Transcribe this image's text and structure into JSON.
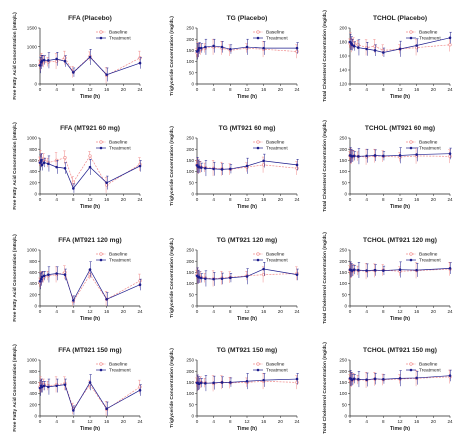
{
  "chart_data": [
    {
      "type": "line",
      "title": "FFA (Placebo)",
      "xlabel": "Time (h)",
      "ylabel": "Free Fatty Acid Concentration (mEq/L)",
      "xlim": [
        0,
        24
      ],
      "ylim": [
        0,
        1500
      ],
      "xticks": [
        0,
        4,
        8,
        12,
        16,
        20,
        24
      ],
      "yticks": [
        0,
        500,
        1000,
        1500
      ],
      "x": [
        0,
        0.25,
        0.5,
        1,
        2,
        4,
        6,
        8,
        12,
        16,
        24
      ],
      "series": [
        {
          "name": "Baseline",
          "values": [
            520,
            560,
            640,
            600,
            590,
            610,
            700,
            320,
            740,
            230,
            700
          ]
        },
        {
          "name": "Treatment",
          "values": [
            500,
            580,
            620,
            640,
            630,
            670,
            610,
            310,
            720,
            250,
            560
          ]
        }
      ]
    },
    {
      "type": "line",
      "title": "TG (Placebo)",
      "xlabel": "Time (h)",
      "ylabel": "Triglyceride Concentration (mg/dL)",
      "xlim": [
        0,
        24
      ],
      "ylim": [
        0,
        250
      ],
      "xticks": [
        0,
        4,
        8,
        12,
        16,
        20,
        24
      ],
      "yticks": [
        0,
        50,
        100,
        150,
        200,
        250
      ],
      "x": [
        0,
        0.25,
        0.5,
        1,
        2,
        4,
        6,
        8,
        12,
        16,
        24
      ],
      "series": [
        {
          "name": "Baseline",
          "values": [
            140,
            150,
            150,
            155,
            160,
            165,
            160,
            150,
            160,
            155,
            145
          ]
        },
        {
          "name": "Treatment",
          "values": [
            145,
            150,
            160,
            160,
            165,
            170,
            165,
            155,
            165,
            160,
            160
          ]
        }
      ]
    },
    {
      "type": "line",
      "title": "TCHOL (Placebo)",
      "xlabel": "Time (h)",
      "ylabel": "Total Cholesterol Concentration (mg/dL)",
      "xlim": [
        0,
        24
      ],
      "ylim": [
        120,
        200
      ],
      "xticks": [
        0,
        4,
        8,
        12,
        16,
        20,
        24
      ],
      "yticks": [
        120,
        140,
        160,
        180,
        200
      ],
      "x": [
        0,
        0.25,
        0.5,
        1,
        2,
        4,
        6,
        8,
        12,
        16,
        24
      ],
      "series": [
        {
          "name": "Baseline",
          "values": [
            178,
            182,
            175,
            178,
            176,
            172,
            174,
            168,
            170,
            172,
            176
          ]
        },
        {
          "name": "Treatment",
          "values": [
            180,
            178,
            176,
            174,
            172,
            170,
            168,
            165,
            170,
            175,
            186
          ]
        }
      ]
    },
    {
      "type": "line",
      "title": "FFA (MT921 60 mg)",
      "xlabel": "Time (h)",
      "ylabel": "Free Fatty Acid Concentration (mEq/L)",
      "xlim": [
        0,
        24
      ],
      "ylim": [
        0,
        1000
      ],
      "xticks": [
        0,
        4,
        8,
        12,
        16,
        20,
        24
      ],
      "yticks": [
        0,
        200,
        400,
        600,
        800,
        1000
      ],
      "x": [
        0,
        0.25,
        0.5,
        1,
        2,
        4,
        6,
        8,
        12,
        16,
        24
      ],
      "series": [
        {
          "name": "Baseline",
          "values": [
            580,
            640,
            600,
            620,
            560,
            600,
            650,
            210,
            680,
            160,
            530
          ]
        },
        {
          "name": "Treatment",
          "values": [
            560,
            600,
            520,
            560,
            540,
            480,
            460,
            100,
            480,
            200,
            500
          ]
        }
      ]
    },
    {
      "type": "line",
      "title": "TG (MT921 60 mg)",
      "xlabel": "Time (h)",
      "ylabel": "Triglyceride Concentration (mg/dL)",
      "xlim": [
        0,
        24
      ],
      "ylim": [
        0,
        250
      ],
      "xticks": [
        0,
        4,
        8,
        12,
        16,
        20,
        24
      ],
      "yticks": [
        0,
        50,
        100,
        150,
        200,
        250
      ],
      "x": [
        0,
        0.25,
        0.5,
        1,
        2,
        4,
        6,
        8,
        12,
        16,
        24
      ],
      "series": [
        {
          "name": "Baseline",
          "values": [
            130,
            125,
            120,
            120,
            118,
            115,
            112,
            110,
            120,
            130,
            115
          ]
        },
        {
          "name": "Treatment",
          "values": [
            128,
            122,
            120,
            118,
            115,
            112,
            110,
            112,
            125,
            148,
            130
          ]
        }
      ]
    },
    {
      "type": "line",
      "title": "TCHOL (MT921 60 mg)",
      "xlabel": "Time (h)",
      "ylabel": "Total Cholesterol Concentration (mg/dL)",
      "xlim": [
        0,
        24
      ],
      "ylim": [
        0,
        250
      ],
      "xticks": [
        0,
        4,
        8,
        12,
        16,
        20,
        24
      ],
      "yticks": [
        0,
        50,
        100,
        150,
        200,
        250
      ],
      "x": [
        0,
        0.25,
        0.5,
        1,
        2,
        4,
        6,
        8,
        12,
        16,
        24
      ],
      "series": [
        {
          "name": "Baseline",
          "values": [
            170,
            168,
            165,
            170,
            168,
            165,
            170,
            168,
            165,
            170,
            168
          ]
        },
        {
          "name": "Treatment",
          "values": [
            172,
            170,
            168,
            170,
            168,
            170,
            172,
            170,
            172,
            176,
            180
          ]
        }
      ]
    },
    {
      "type": "line",
      "title": "FFA (MT921 120 mg)",
      "xlabel": "Time (h)",
      "ylabel": "Free Fatty Acid Concentration (mEq/L)",
      "xlim": [
        0,
        24
      ],
      "ylim": [
        0,
        1000
      ],
      "xticks": [
        0,
        4,
        8,
        12,
        16,
        20,
        24
      ],
      "yticks": [
        0,
        200,
        400,
        600,
        800,
        1000
      ],
      "x": [
        0,
        0.25,
        0.5,
        1,
        2,
        4,
        6,
        8,
        12,
        16,
        24
      ],
      "series": [
        {
          "name": "Baseline",
          "values": [
            420,
            460,
            500,
            520,
            540,
            560,
            600,
            80,
            560,
            120,
            450
          ]
        },
        {
          "name": "Treatment",
          "values": [
            440,
            480,
            520,
            540,
            560,
            580,
            560,
            100,
            650,
            120,
            380
          ]
        }
      ]
    },
    {
      "type": "line",
      "title": "TG (MT921 120 mg)",
      "xlabel": "Time (h)",
      "ylabel": "Triglyceride Concentration (mg/dL)",
      "xlim": [
        0,
        24
      ],
      "ylim": [
        0,
        250
      ],
      "xticks": [
        0,
        4,
        8,
        12,
        16,
        20,
        24
      ],
      "yticks": [
        0,
        50,
        100,
        150,
        200,
        250
      ],
      "x": [
        0,
        0.25,
        0.5,
        1,
        2,
        4,
        6,
        8,
        12,
        16,
        24
      ],
      "series": [
        {
          "name": "Baseline",
          "values": [
            140,
            135,
            130,
            128,
            125,
            122,
            125,
            128,
            135,
            140,
            145
          ]
        },
        {
          "name": "Treatment",
          "values": [
            135,
            130,
            128,
            125,
            122,
            120,
            122,
            126,
            132,
            165,
            140
          ]
        }
      ]
    },
    {
      "type": "line",
      "title": "TCHOL (MT921 120 mg)",
      "xlabel": "Time (h)",
      "ylabel": "Total Cholesterol Concentration (mg/dL)",
      "xlim": [
        0,
        24
      ],
      "ylim": [
        0,
        250
      ],
      "xticks": [
        0,
        4,
        8,
        12,
        16,
        20,
        24
      ],
      "yticks": [
        0,
        50,
        100,
        150,
        200,
        250
      ],
      "x": [
        0,
        0.25,
        0.5,
        1,
        2,
        4,
        6,
        8,
        12,
        16,
        24
      ],
      "series": [
        {
          "name": "Baseline",
          "values": [
            160,
            158,
            155,
            160,
            158,
            155,
            158,
            160,
            155,
            158,
            165
          ]
        },
        {
          "name": "Treatment",
          "values": [
            162,
            160,
            158,
            162,
            160,
            158,
            160,
            158,
            162,
            160,
            168
          ]
        }
      ]
    },
    {
      "type": "line",
      "title": "FFA (MT921 150 mg)",
      "xlabel": "Time (h)",
      "ylabel": "Free Fatty Acid Concentration (mEq/L)",
      "xlim": [
        0,
        24
      ],
      "ylim": [
        0,
        1000
      ],
      "xticks": [
        0,
        4,
        8,
        12,
        16,
        20,
        24
      ],
      "yticks": [
        0,
        200,
        400,
        600,
        800,
        1000
      ],
      "x": [
        0,
        0.25,
        0.5,
        1,
        2,
        4,
        6,
        8,
        12,
        16,
        24
      ],
      "series": [
        {
          "name": "Baseline",
          "values": [
            520,
            560,
            540,
            560,
            540,
            560,
            580,
            130,
            560,
            120,
            520
          ]
        },
        {
          "name": "Treatment",
          "values": [
            500,
            540,
            520,
            540,
            520,
            540,
            560,
            100,
            600,
            130,
            460
          ]
        }
      ]
    },
    {
      "type": "line",
      "title": "TG (MT921 150 mg)",
      "xlabel": "Time (h)",
      "ylabel": "Triglyceride Concentration (mg/dL)",
      "xlim": [
        0,
        24
      ],
      "ylim": [
        0,
        250
      ],
      "xticks": [
        0,
        4,
        8,
        12,
        16,
        20,
        24
      ],
      "yticks": [
        0,
        50,
        100,
        150,
        200,
        250
      ],
      "x": [
        0,
        0.25,
        0.5,
        1,
        2,
        4,
        6,
        8,
        12,
        16,
        24
      ],
      "series": [
        {
          "name": "Baseline",
          "values": [
            150,
            148,
            145,
            150,
            148,
            145,
            150,
            148,
            150,
            155,
            150
          ]
        },
        {
          "name": "Treatment",
          "values": [
            148,
            146,
            144,
            148,
            146,
            148,
            150,
            150,
            155,
            160,
            165
          ]
        }
      ]
    },
    {
      "type": "line",
      "title": "TCHOL (MT921 150 mg)",
      "xlabel": "Time (h)",
      "ylabel": "Total Cholesterol Concentration (mg/dL)",
      "xlim": [
        0,
        24
      ],
      "ylim": [
        0,
        250
      ],
      "xticks": [
        0,
        4,
        8,
        12,
        16,
        20,
        24
      ],
      "yticks": [
        0,
        50,
        100,
        150,
        200,
        250
      ],
      "x": [
        0,
        0.25,
        0.5,
        1,
        2,
        4,
        6,
        8,
        12,
        16,
        24
      ],
      "series": [
        {
          "name": "Baseline",
          "values": [
            165,
            162,
            160,
            165,
            162,
            160,
            165,
            162,
            165,
            168,
            175
          ]
        },
        {
          "name": "Treatment",
          "values": [
            168,
            165,
            162,
            166,
            164,
            162,
            166,
            164,
            168,
            170,
            180
          ]
        }
      ]
    }
  ],
  "colors": {
    "baseline": "#f08a8a",
    "treatment": "#1c1c8c",
    "axis": "#222222"
  }
}
